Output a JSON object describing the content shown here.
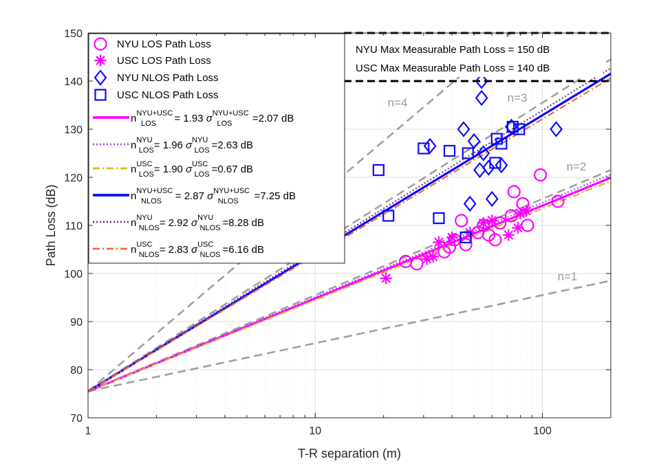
{
  "chart_data": {
    "type": "scatter",
    "xscale": "log",
    "xlim": [
      1,
      200
    ],
    "ylim": [
      70,
      150
    ],
    "xlabel": "T-R separation (m)",
    "ylabel": "Path Loss (dB)",
    "xticks": [
      1,
      10,
      100
    ],
    "xtick_labels": [
      "1",
      "10",
      "100"
    ],
    "yticks": [
      70,
      80,
      90,
      100,
      110,
      120,
      130,
      140,
      150
    ],
    "ytick_labels": [
      "70",
      "80",
      "90",
      "100",
      "110",
      "120",
      "130",
      "140",
      "150"
    ],
    "grid": true,
    "legend_position": "top-left",
    "fspl_1m_db": 75.5,
    "colors": {
      "magenta": "#ff00ff",
      "blue": "#0a0aff",
      "dotted_purple": "#b040f0",
      "yellow": "#e8b020",
      "dark_purple": "#7a2a8c",
      "orange": "#f06a3a",
      "gray": "#a0a0a0",
      "black": "#000000"
    },
    "series": [
      {
        "name": "NYU LOS Path Loss",
        "marker": "circle",
        "color": "#ff00ff",
        "points": [
          [
            25,
            102.5
          ],
          [
            28,
            102
          ],
          [
            37,
            104.5
          ],
          [
            39,
            105.5
          ],
          [
            41,
            107
          ],
          [
            44,
            111
          ],
          [
            46,
            106
          ],
          [
            52,
            108.5
          ],
          [
            55,
            110
          ],
          [
            58,
            108
          ],
          [
            62,
            107
          ],
          [
            65,
            110.5
          ],
          [
            73,
            112
          ],
          [
            75,
            117
          ],
          [
            82,
            114.5
          ],
          [
            86,
            110
          ],
          [
            98,
            120.5
          ],
          [
            117,
            115
          ]
        ]
      },
      {
        "name": "USC LOS Path Loss",
        "marker": "asterisk",
        "color": "#ff00ff",
        "points": [
          [
            20.5,
            99
          ],
          [
            31,
            103
          ],
          [
            33,
            103.5
          ],
          [
            35,
            106.5
          ],
          [
            40,
            107.5
          ],
          [
            48,
            108.5
          ],
          [
            55,
            110.5
          ],
          [
            60,
            111
          ],
          [
            71,
            108
          ],
          [
            78,
            109.5
          ],
          [
            80,
            112.5
          ],
          [
            85,
            113
          ]
        ]
      },
      {
        "name": "NYU NLOS Path Loss",
        "marker": "diamond",
        "color": "#0a0aff",
        "points": [
          [
            32,
            126.5
          ],
          [
            45,
            130
          ],
          [
            48,
            114.5
          ],
          [
            50,
            127.5
          ],
          [
            53,
            121.5
          ],
          [
            54,
            140
          ],
          [
            54,
            136.5
          ],
          [
            55,
            125
          ],
          [
            58,
            122
          ],
          [
            60,
            115.5
          ],
          [
            66,
            122.5
          ],
          [
            73,
            130.5
          ],
          [
            115,
            130
          ]
        ]
      },
      {
        "name": "USC NLOS Path Loss",
        "marker": "square",
        "color": "#0a0aff",
        "points": [
          [
            19,
            121.5
          ],
          [
            21,
            112
          ],
          [
            30,
            126
          ],
          [
            35,
            111.5
          ],
          [
            39,
            125.5
          ],
          [
            46,
            107.5
          ],
          [
            47,
            125
          ],
          [
            62,
            123
          ],
          [
            63,
            128
          ],
          [
            66,
            127
          ],
          [
            74,
            130.5
          ],
          [
            79,
            130
          ]
        ]
      }
    ],
    "fits": [
      {
        "name": "LOS NYU+USC",
        "n": 1.93,
        "sigma": 2.07,
        "color": "#ff00ff",
        "style": "solid",
        "width": 3.2
      },
      {
        "name": "LOS NYU",
        "n": 1.96,
        "sigma": 2.63,
        "color": "#b040f0",
        "style": "dotted",
        "width": 2.2
      },
      {
        "name": "LOS USC",
        "n": 1.9,
        "sigma": 0.67,
        "color": "#e8b020",
        "style": "dashdot",
        "width": 2.2
      },
      {
        "name": "NLOS NYU+USC",
        "n": 2.87,
        "sigma": 7.25,
        "color": "#0a0aff",
        "style": "solid",
        "width": 3.2
      },
      {
        "name": "NLOS NYU",
        "n": 2.92,
        "sigma": 8.28,
        "color": "#7a2a8c",
        "style": "dotted",
        "width": 2.2
      },
      {
        "name": "NLOS USC",
        "n": 2.83,
        "sigma": 6.16,
        "color": "#f06a3a",
        "style": "dashdot",
        "width": 2.2
      }
    ],
    "reference_lines": [
      {
        "label": "n=1",
        "n": 1
      },
      {
        "label": "n=2",
        "n": 2
      },
      {
        "label": "n=3",
        "n": 3
      },
      {
        "label": "n=4",
        "n": 4
      }
    ],
    "thresholds": [
      {
        "label": "NYU Max Measurable Path Loss = 150 dB",
        "y": 150
      },
      {
        "label": "USC Max Measurable Path Loss = 140 dB",
        "y": 140
      }
    ],
    "legend": [
      {
        "kind": "marker",
        "marker": "circle",
        "color": "#ff00ff",
        "text": "NYU LOS Path Loss"
      },
      {
        "kind": "marker",
        "marker": "asterisk",
        "color": "#ff00ff",
        "text": "USC LOS Path Loss"
      },
      {
        "kind": "marker",
        "marker": "diamond",
        "color": "#0a0aff",
        "text": "NYU NLOS Path Loss"
      },
      {
        "kind": "marker",
        "marker": "square",
        "color": "#0a0aff",
        "text": "USC NLOS Path Loss"
      },
      {
        "kind": "line",
        "fit": 0,
        "n_sup": "NYU+USC",
        "n_sub": "LOS",
        "n_val": "= 1.93",
        "s_sup": "NYU+USC",
        "s_sub": "LOS",
        "s_val": "=2.07 dB"
      },
      {
        "kind": "line",
        "fit": 1,
        "n_sup": "NYU",
        "n_sub": "LOS",
        "n_val": "= 1.96",
        "s_sup": "NYU",
        "s_sub": "LOS",
        "s_val": "=2.63 dB"
      },
      {
        "kind": "line",
        "fit": 2,
        "n_sup": "USC",
        "n_sub": "LOS",
        "n_val": "= 1.90",
        "s_sup": "USC",
        "s_sub": "LOS",
        "s_val": "=0.67 dB"
      },
      {
        "kind": "line",
        "fit": 3,
        "n_sup": "NYU+USC",
        "n_sub": "NLOS",
        "n_val": "= 2.87",
        "s_sup": "NYU+USC",
        "s_sub": "NLOS",
        "s_val": "=7.25 dB"
      },
      {
        "kind": "line",
        "fit": 4,
        "n_sup": "NYU",
        "n_sub": "NLOS",
        "n_val": "= 2.92",
        "s_sup": "NYU",
        "s_sub": "NLOS",
        "s_val": "=8.28 dB"
      },
      {
        "kind": "line",
        "fit": 5,
        "n_sup": "USC",
        "n_sub": "NLOS",
        "n_val": "= 2.83",
        "s_sup": "USC",
        "s_sub": "NLOS",
        "s_val": "=6.16 dB"
      }
    ],
    "symbols": {
      "n": "n",
      "sigma": "σ"
    }
  }
}
